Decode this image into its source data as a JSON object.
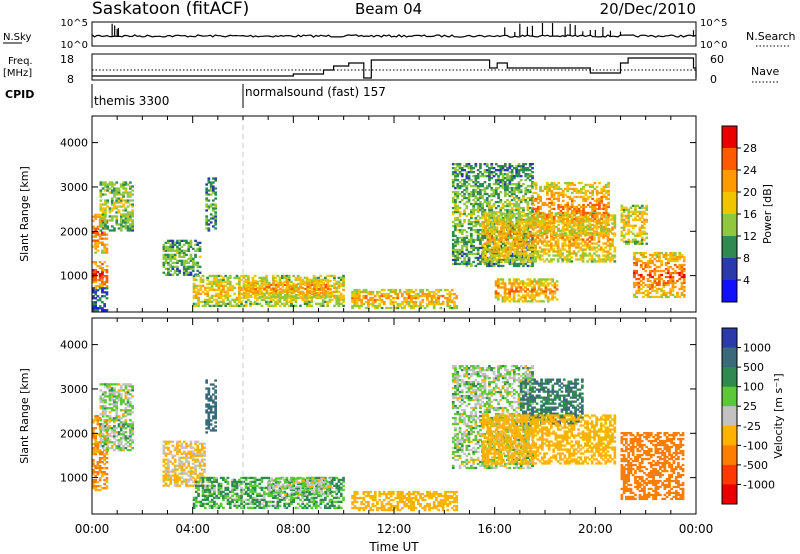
{
  "header": {
    "station": "Saskatoon (fitACF)",
    "beam": "Beam 04",
    "date": "20/Dec/2010"
  },
  "status": {
    "nsky_label": "N.Sky",
    "nsky_ticks": [
      "10^5",
      "10^0"
    ],
    "nsearch_label": "N.Search",
    "nsearch_ticks": [
      "10^5",
      "10^0"
    ],
    "freq_label": "Freq.",
    "freq_unit": "[MHz]",
    "freq_ticks": [
      "18",
      "8"
    ],
    "nave_label": "Nave",
    "nave_ticks": [
      "60",
      "0"
    ],
    "cpid_label": "CPID",
    "cpid_segments": [
      {
        "name": "themis 3300",
        "start_hour": 0
      },
      {
        "name": "normalsound (fast) 157",
        "start_hour": 6
      }
    ]
  },
  "power_panel": {
    "ylabel": "Slant Range [km]",
    "colorbar_label": "Power [dB]",
    "colorbar_ticks": [
      "28",
      "24",
      "20",
      "16",
      "12",
      "8",
      "4"
    ],
    "colors": [
      "#e80000",
      "#ff5a00",
      "#ff9a00",
      "#f2c400",
      "#8fc83e",
      "#2f8a50",
      "#2a3aa8",
      "#1010ff"
    ]
  },
  "velocity_panel": {
    "ylabel": "Slant Range [km]",
    "colorbar_label": "Velocity [m s⁻¹]",
    "colorbar_ticks": [
      "1000",
      "500",
      "100",
      "25",
      "-25",
      "-100",
      "-500",
      "-1000"
    ],
    "colors": [
      "#2a3aa8",
      "#3a6a7a",
      "#2f8a50",
      "#5cc838",
      "#c2c2c2",
      "#ffb300",
      "#ff7d00",
      "#ff3a00",
      "#e80000"
    ]
  },
  "x_axis": {
    "label": "Time UT",
    "ticks": [
      "00:00",
      "04:00",
      "08:00",
      "12:00",
      "16:00",
      "20:00",
      "00:00"
    ]
  },
  "chart_data": [
    {
      "type": "heatmap",
      "name": "Power",
      "xlabel": "Time UT",
      "ylabel": "Slant Range [km]",
      "xlim": [
        0,
        24
      ],
      "ylim": [
        180,
        4600
      ],
      "y_ticks": [
        1000,
        2000,
        3000,
        4000
      ],
      "colorbar": {
        "label": "Power [dB]",
        "range": [
          0,
          30
        ],
        "ticks": [
          4,
          8,
          12,
          16,
          20,
          24,
          28
        ]
      },
      "echo_regions": [
        {
          "t0": 0.0,
          "t1": 0.6,
          "r0": 700,
          "r1": 1300,
          "level": 26
        },
        {
          "t0": 0.0,
          "t1": 0.6,
          "r0": 1500,
          "r1": 2400,
          "level": 24
        },
        {
          "t0": 0.3,
          "t1": 1.6,
          "r0": 2000,
          "r1": 3100,
          "level": 14
        },
        {
          "t0": 0.0,
          "t1": 0.6,
          "r0": 200,
          "r1": 700,
          "level": 6
        },
        {
          "t0": 4.5,
          "t1": 4.9,
          "r0": 2000,
          "r1": 3200,
          "level": 10
        },
        {
          "t0": 2.8,
          "t1": 4.3,
          "r0": 1000,
          "r1": 1800,
          "level": 12
        },
        {
          "t0": 4.0,
          "t1": 10.0,
          "r0": 300,
          "r1": 1000,
          "level": 18
        },
        {
          "t0": 6.0,
          "t1": 9.5,
          "r0": 500,
          "r1": 900,
          "level": 22
        },
        {
          "t0": 10.3,
          "t1": 14.5,
          "r0": 250,
          "r1": 700,
          "level": 20
        },
        {
          "t0": 14.3,
          "t1": 17.5,
          "r0": 1200,
          "r1": 3500,
          "level": 12
        },
        {
          "t0": 15.5,
          "t1": 20.8,
          "r0": 1300,
          "r1": 2400,
          "level": 20
        },
        {
          "t0": 17.5,
          "t1": 20.5,
          "r0": 1900,
          "r1": 3100,
          "level": 22
        },
        {
          "t0": 16.0,
          "t1": 18.5,
          "r0": 400,
          "r1": 900,
          "level": 22
        },
        {
          "t0": 21.0,
          "t1": 22.0,
          "r0": 1700,
          "r1": 2600,
          "level": 18
        },
        {
          "t0": 21.5,
          "t1": 23.5,
          "r0": 500,
          "r1": 1500,
          "level": 24
        }
      ]
    },
    {
      "type": "heatmap",
      "name": "Velocity",
      "xlabel": "Time UT",
      "ylabel": "Slant Range [km]",
      "xlim": [
        0,
        24
      ],
      "ylim": [
        180,
        4600
      ],
      "y_ticks": [
        1000,
        2000,
        3000,
        4000
      ],
      "colorbar": {
        "label": "Velocity [m s⁻¹]",
        "ticks": [
          1000,
          500,
          100,
          25,
          -25,
          -100,
          -500,
          -1000
        ]
      },
      "echo_regions": [
        {
          "t0": 0.0,
          "t1": 0.6,
          "r0": 700,
          "r1": 2400,
          "level": -300
        },
        {
          "t0": 0.3,
          "t1": 1.6,
          "r0": 1600,
          "r1": 3100,
          "level": 0
        },
        {
          "t0": 4.5,
          "t1": 4.9,
          "r0": 2000,
          "r1": 3200,
          "level": 600
        },
        {
          "t0": 2.8,
          "t1": 4.5,
          "r0": 800,
          "r1": 1800,
          "level": -80
        },
        {
          "t0": 4.0,
          "t1": 10.0,
          "r0": 300,
          "r1": 1000,
          "level": 60
        },
        {
          "t0": 7.0,
          "t1": 9.5,
          "r0": 600,
          "r1": 1000,
          "level": 0
        },
        {
          "t0": 10.3,
          "t1": 14.5,
          "r0": 250,
          "r1": 700,
          "level": -150
        },
        {
          "t0": 14.3,
          "t1": 17.5,
          "r0": 1200,
          "r1": 3500,
          "level": 0
        },
        {
          "t0": 17.0,
          "t1": 19.5,
          "r0": 2200,
          "r1": 3200,
          "level": 300
        },
        {
          "t0": 15.5,
          "t1": 20.8,
          "r0": 1300,
          "r1": 2400,
          "level": -200
        },
        {
          "t0": 21.0,
          "t1": 23.5,
          "r0": 500,
          "r1": 2000,
          "level": -400
        }
      ]
    }
  ]
}
